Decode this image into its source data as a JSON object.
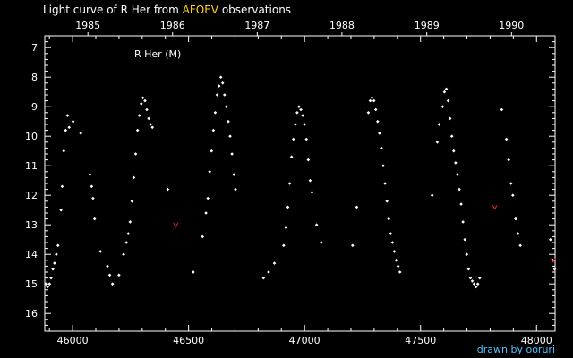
{
  "header": {
    "title_prefix": "Light curve of R Her from",
    "title_source": "AFOEV",
    "title_suffix": "observations"
  },
  "footer": {
    "credit": "drawn by ooruri"
  },
  "colors": {
    "background": "#000000",
    "axis": "#ffffff",
    "points": "#ffffff",
    "limit_marks": "#ff2020",
    "highlight": "#ffd21a",
    "credit": "#4fc3ff"
  },
  "chart_data": {
    "type": "scatter",
    "title": "Light curve of R Her from AFOEV observations",
    "inset_label": "R Her (M)",
    "xlabel": "",
    "ylabel": "",
    "xlim": [
      45880,
      48080
    ],
    "ylim": [
      16.6,
      6.6
    ],
    "y_inverted": true,
    "x_ticks": [
      46000,
      46500,
      47000,
      47500,
      48000
    ],
    "y_ticks": [
      7,
      8,
      9,
      10,
      11,
      12,
      13,
      14,
      15,
      16
    ],
    "top_axis": {
      "labels": [
        "1985",
        "1986",
        "1987",
        "1988",
        "1989",
        "1990"
      ],
      "jd": [
        46066,
        46431,
        46796,
        47161,
        47527,
        47892
      ]
    },
    "series": [
      {
        "kind": "observations",
        "points": [
          [
            45885,
            15.0
          ],
          [
            45892,
            15.1
          ],
          [
            45900,
            15.0
          ],
          [
            45907,
            14.8
          ],
          [
            45915,
            14.5
          ],
          [
            45922,
            14.3
          ],
          [
            45930,
            14.0
          ],
          [
            45937,
            13.7
          ],
          [
            45950,
            12.5
          ],
          [
            45955,
            11.7
          ],
          [
            45962,
            10.5
          ],
          [
            45970,
            9.8
          ],
          [
            45978,
            9.3
          ],
          [
            45985,
            9.7
          ],
          [
            46002,
            9.5
          ],
          [
            46035,
            9.9
          ],
          [
            46075,
            11.3
          ],
          [
            46082,
            11.7
          ],
          [
            46088,
            12.1
          ],
          [
            46095,
            12.8
          ],
          [
            46120,
            13.9
          ],
          [
            46150,
            14.4
          ],
          [
            46160,
            14.7
          ],
          [
            46172,
            15.0
          ],
          [
            46200,
            14.7
          ],
          [
            46220,
            14.0
          ],
          [
            46232,
            13.6
          ],
          [
            46240,
            13.3
          ],
          [
            46248,
            12.9
          ],
          [
            46256,
            12.2
          ],
          [
            46264,
            11.4
          ],
          [
            46272,
            10.6
          ],
          [
            46280,
            9.8
          ],
          [
            46288,
            9.3
          ],
          [
            46296,
            8.9
          ],
          [
            46303,
            8.7
          ],
          [
            46312,
            8.8
          ],
          [
            46320,
            9.1
          ],
          [
            46328,
            9.4
          ],
          [
            46336,
            9.6
          ],
          [
            46344,
            9.7
          ],
          [
            46410,
            11.8
          ],
          [
            46520,
            14.6
          ],
          [
            46560,
            13.4
          ],
          [
            46575,
            12.6
          ],
          [
            46583,
            12.1
          ],
          [
            46591,
            11.2
          ],
          [
            46599,
            10.5
          ],
          [
            46607,
            9.8
          ],
          [
            46615,
            9.2
          ],
          [
            46623,
            8.6
          ],
          [
            46631,
            8.3
          ],
          [
            46639,
            8.0
          ],
          [
            46647,
            8.2
          ],
          [
            46655,
            8.6
          ],
          [
            46663,
            9.0
          ],
          [
            46671,
            9.5
          ],
          [
            46679,
            10.0
          ],
          [
            46687,
            10.6
          ],
          [
            46695,
            11.3
          ],
          [
            46702,
            11.8
          ],
          [
            46823,
            14.8
          ],
          [
            46845,
            14.6
          ],
          [
            46870,
            14.3
          ],
          [
            46910,
            13.7
          ],
          [
            46920,
            13.1
          ],
          [
            46928,
            12.4
          ],
          [
            46936,
            11.6
          ],
          [
            46944,
            10.7
          ],
          [
            46952,
            10.1
          ],
          [
            46960,
            9.6
          ],
          [
            46968,
            9.2
          ],
          [
            46976,
            9.0
          ],
          [
            46984,
            9.1
          ],
          [
            46992,
            9.3
          ],
          [
            47000,
            9.6
          ],
          [
            47008,
            10.1
          ],
          [
            47016,
            10.8
          ],
          [
            47024,
            11.5
          ],
          [
            47032,
            11.9
          ],
          [
            47052,
            13.0
          ],
          [
            47072,
            13.6
          ],
          [
            47207,
            13.7
          ],
          [
            47225,
            12.4
          ],
          [
            47275,
            9.2
          ],
          [
            47283,
            8.8
          ],
          [
            47291,
            8.7
          ],
          [
            47299,
            8.8
          ],
          [
            47307,
            9.1
          ],
          [
            47315,
            9.5
          ],
          [
            47323,
            9.9
          ],
          [
            47331,
            10.4
          ],
          [
            47339,
            11.0
          ],
          [
            47347,
            11.6
          ],
          [
            47355,
            12.2
          ],
          [
            47363,
            12.8
          ],
          [
            47371,
            13.3
          ],
          [
            47379,
            13.6
          ],
          [
            47387,
            13.9
          ],
          [
            47395,
            14.2
          ],
          [
            47403,
            14.4
          ],
          [
            47411,
            14.6
          ],
          [
            47550,
            12.0
          ],
          [
            47572,
            10.2
          ],
          [
            47580,
            9.6
          ],
          [
            47595,
            9.0
          ],
          [
            47603,
            8.5
          ],
          [
            47611,
            8.4
          ],
          [
            47619,
            8.8
          ],
          [
            47627,
            9.4
          ],
          [
            47635,
            10.0
          ],
          [
            47643,
            10.5
          ],
          [
            47651,
            10.9
          ],
          [
            47659,
            11.3
          ],
          [
            47667,
            11.8
          ],
          [
            47675,
            12.3
          ],
          [
            47683,
            12.9
          ],
          [
            47691,
            13.5
          ],
          [
            47699,
            14.0
          ],
          [
            47707,
            14.5
          ],
          [
            47715,
            14.8
          ],
          [
            47723,
            14.9
          ],
          [
            47731,
            15.0
          ],
          [
            47739,
            15.1
          ],
          [
            47747,
            15.0
          ],
          [
            47755,
            14.8
          ],
          [
            47850,
            9.1
          ],
          [
            47870,
            10.1
          ],
          [
            47880,
            10.8
          ],
          [
            47890,
            11.6
          ],
          [
            47898,
            12.0
          ],
          [
            47910,
            12.8
          ],
          [
            47920,
            13.3
          ],
          [
            47930,
            13.7
          ],
          [
            48060,
            13.5
          ],
          [
            48070,
            14.2
          ],
          [
            48078,
            14.5
          ]
        ]
      },
      {
        "kind": "fainter_than_limits",
        "points": [
          [
            46445,
            13.0
          ],
          [
            47820,
            12.4
          ],
          [
            48072,
            14.2
          ]
        ]
      }
    ]
  }
}
